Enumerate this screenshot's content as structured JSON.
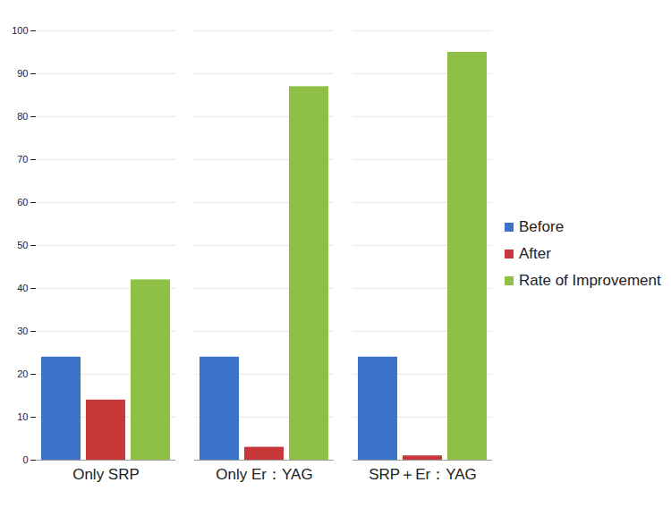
{
  "chart_data": {
    "type": "bar",
    "categories": [
      "Only SRP",
      "Only Er：YAG",
      "SRP＋Er：YAG"
    ],
    "series": [
      {
        "name": "Before",
        "color": "#3b73c8",
        "values": [
          24,
          24,
          24
        ]
      },
      {
        "name": "After",
        "color": "#c8383a",
        "values": [
          14,
          3,
          1
        ]
      },
      {
        "name": "Rate of Improvement",
        "color": "#8dc044",
        "values": [
          42,
          87,
          95
        ]
      }
    ],
    "ylim": [
      0,
      100
    ],
    "yticks": [
      0,
      10,
      20,
      30,
      40,
      50,
      60,
      70,
      80,
      90,
      100
    ],
    "grid": true,
    "legend": "right"
  }
}
